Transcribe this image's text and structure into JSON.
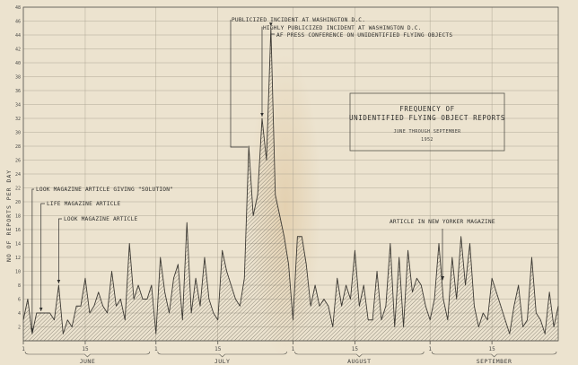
{
  "chart_data": {
    "type": "area",
    "title": "FREQUENCY OF",
    "title_line2": "UNIDENTIFIED FLYING OBJECT REPORTS",
    "subtitle": "JUNE THROUGH SEPTEMBER",
    "year": "1952",
    "xlabel": "",
    "ylabel": "NO OF REPORTS PER DAY",
    "ylim": [
      0,
      48
    ],
    "yticks": [
      2,
      4,
      6,
      8,
      10,
      12,
      14,
      16,
      18,
      20,
      22,
      24,
      26,
      28,
      30,
      32,
      34,
      36,
      38,
      40,
      42,
      44,
      46,
      48
    ],
    "grid": true,
    "x_day_range": [
      1,
      122
    ],
    "x_ticks": [
      {
        "day": 1,
        "label": "1"
      },
      {
        "day": 15,
        "label": "15"
      },
      {
        "day": 31,
        "label": "1"
      },
      {
        "day": 45,
        "label": "15"
      },
      {
        "day": 62,
        "label": "1"
      },
      {
        "day": 76,
        "label": "15"
      },
      {
        "day": 93,
        "label": "1"
      },
      {
        "day": 107,
        "label": "15"
      }
    ],
    "months": [
      {
        "label": "JUNE",
        "start": 1,
        "end": 30
      },
      {
        "label": "JULY",
        "start": 31,
        "end": 61
      },
      {
        "label": "AUGUST",
        "start": 62,
        "end": 92
      },
      {
        "label": "SEPTEMBER",
        "start": 93,
        "end": 122
      }
    ],
    "series": [
      {
        "values": [
          3,
          6,
          1,
          4,
          4,
          4,
          4,
          3,
          8,
          1,
          3,
          2,
          5,
          5,
          9,
          4,
          5,
          7,
          5,
          4,
          10,
          5,
          6,
          3,
          14,
          6,
          8,
          6,
          6,
          8,
          1,
          12,
          7,
          4,
          9,
          11,
          3,
          17,
          4,
          9,
          5,
          12,
          6,
          4,
          3,
          13,
          10,
          8,
          6,
          5,
          9,
          28,
          18,
          21,
          32,
          26,
          45,
          21,
          18,
          15,
          11,
          3,
          15,
          15,
          11,
          5,
          8,
          5,
          6,
          5,
          2,
          9,
          5,
          8,
          6,
          13,
          5,
          8,
          3,
          3,
          10,
          3,
          5,
          14,
          2,
          12,
          2,
          13,
          7,
          9,
          8,
          5,
          3,
          6,
          14,
          6,
          3,
          12,
          6,
          15,
          8,
          14,
          5,
          2,
          4,
          3,
          9,
          7,
          5,
          3,
          1,
          5,
          8,
          2,
          3,
          12,
          4,
          3,
          1,
          7,
          2,
          5
        ]
      }
    ],
    "annotations": [
      {
        "text": "PUBLICIZED INCIDENT AT WASHINGTON D.C.",
        "day": 52
      },
      {
        "text": "HIGHLY PUBLICIZED INCIDENT AT WASHINGTON D.C.",
        "day": 55
      },
      {
        "text": "AF PRESS CONFERENCE ON UNIDENTIFIED FLYING OBJECTS",
        "day": 57
      },
      {
        "text": "LOOK MAGAZINE ARTICLE GIVING \"SOLUTION\"",
        "day": 3
      },
      {
        "text": "LIFE MAGAZINE ARTICLE",
        "day": 5
      },
      {
        "text": "LOOK MAGAZINE ARTICLE",
        "day": 9
      },
      {
        "text": "ARTICLE IN NEW YORKER MAGAZINE",
        "day": 98
      }
    ]
  }
}
